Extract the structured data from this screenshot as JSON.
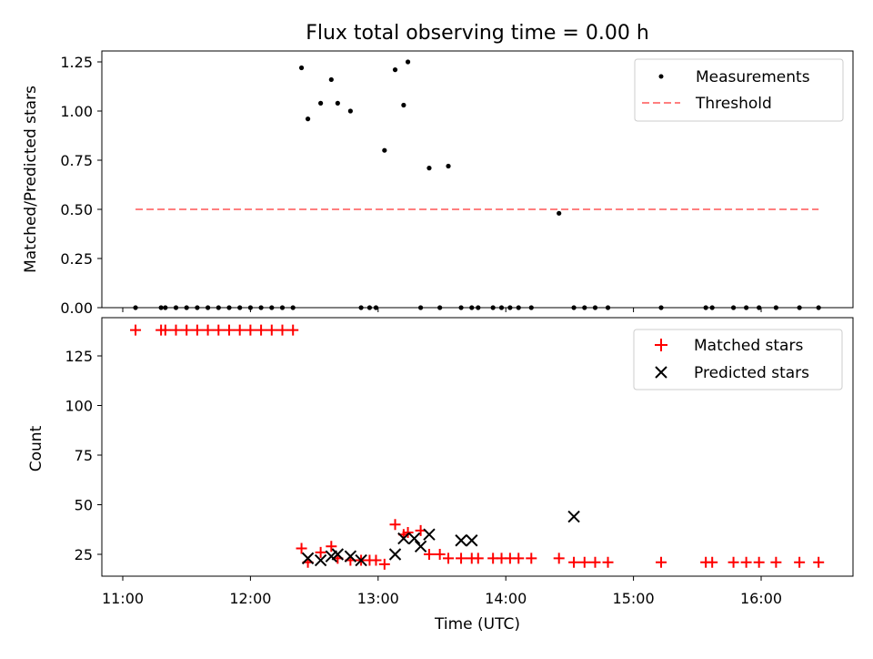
{
  "chart_data": {
    "title": "Flux total observing time = 0.00 h",
    "xlabel": "Time (UTC)",
    "x_ticks": [
      "11:00",
      "12:00",
      "13:00",
      "14:00",
      "15:00",
      "16:00"
    ],
    "colors": {
      "matched": "#ff0000",
      "predicted": "#000000",
      "threshold": "#ff7f7f",
      "measurements": "#000000"
    },
    "panels": [
      {
        "type": "scatter",
        "ylabel": "Matched/Predicted stars",
        "ylim": [
          0,
          1.3
        ],
        "y_ticks": [
          "0.00",
          "0.25",
          "0.50",
          "0.75",
          "1.00",
          "1.25"
        ],
        "legend_position": "top-right",
        "series": [
          {
            "name": "Measurements",
            "type": "scatter",
            "x": [
              "11:06",
              "11:18",
              "11:20",
              "11:25",
              "11:30",
              "11:35",
              "11:40",
              "11:45",
              "11:50",
              "11:55",
              "12:00",
              "12:05",
              "12:10",
              "12:15",
              "12:20",
              "12:24",
              "12:27",
              "12:33",
              "12:38",
              "12:41",
              "12:47",
              "12:52",
              "12:56",
              "12:59",
              "13:03",
              "13:08",
              "13:12",
              "13:14",
              "13:20",
              "13:24",
              "13:29",
              "13:33",
              "13:39",
              "13:44",
              "13:47",
              "13:54",
              "13:58",
              "14:02",
              "14:06",
              "14:12",
              "14:25",
              "14:32",
              "14:37",
              "14:42",
              "14:48",
              "15:13",
              "15:34",
              "15:37",
              "15:47",
              "15:53",
              "15:59",
              "16:07",
              "16:18",
              "16:27"
            ],
            "y": [
              0,
              0,
              0,
              0,
              0,
              0,
              0,
              0,
              0,
              0,
              0,
              0,
              0,
              0,
              0,
              1.22,
              0.96,
              1.04,
              1.16,
              1.04,
              1.0,
              0,
              0,
              0,
              0.8,
              1.21,
              1.03,
              1.25,
              0,
              0.71,
              0,
              0.72,
              0,
              0,
              0,
              0,
              0,
              0,
              0,
              0,
              0.48,
              0,
              0,
              0,
              0,
              0,
              0,
              0,
              0,
              0,
              0,
              0,
              0,
              0
            ]
          },
          {
            "name": "Threshold",
            "type": "line",
            "style": "dashed",
            "x": [
              "11:06",
              "16:27"
            ],
            "y": [
              0.5,
              0.5
            ]
          }
        ]
      },
      {
        "type": "scatter",
        "ylabel": "Count",
        "ylim": [
          15,
          145
        ],
        "y_ticks": [
          "25",
          "50",
          "75",
          "100",
          "125"
        ],
        "legend_position": "top-right",
        "series": [
          {
            "name": "Matched stars",
            "marker": "+",
            "x": [
              "11:06",
              "11:18",
              "11:20",
              "11:25",
              "11:30",
              "11:35",
              "11:40",
              "11:45",
              "11:50",
              "11:55",
              "12:00",
              "12:05",
              "12:10",
              "12:15",
              "12:20",
              "12:24",
              "12:27",
              "12:33",
              "12:38",
              "12:41",
              "12:47",
              "12:52",
              "12:56",
              "12:59",
              "13:03",
              "13:08",
              "13:12",
              "13:14",
              "13:20",
              "13:24",
              "13:29",
              "13:33",
              "13:39",
              "13:44",
              "13:47",
              "13:54",
              "13:58",
              "14:02",
              "14:06",
              "14:12",
              "14:25",
              "14:32",
              "14:37",
              "14:42",
              "14:48",
              "15:13",
              "15:34",
              "15:37",
              "15:47",
              "15:53",
              "15:59",
              "16:07",
              "16:18",
              "16:27"
            ],
            "y": [
              138,
              138,
              138,
              138,
              138,
              138,
              138,
              138,
              138,
              138,
              138,
              138,
              138,
              138,
              138,
              28,
              21,
              26,
              29,
              23,
              22,
              22,
              22,
              22,
              20,
              40,
              35,
              36,
              37,
              25,
              25,
              23,
              23,
              23,
              23,
              23,
              23,
              23,
              23,
              23,
              23,
              21,
              21,
              21,
              21,
              21,
              21,
              21,
              21,
              21,
              21,
              21,
              21,
              21
            ]
          },
          {
            "name": "Predicted stars",
            "marker": "x",
            "x": [
              "12:27",
              "12:33",
              "12:38",
              "12:41",
              "12:47",
              "12:52",
              "13:08",
              "13:12",
              "13:17",
              "13:20",
              "13:24",
              "13:39",
              "13:44",
              "14:32"
            ],
            "y": [
              23,
              22,
              24,
              25,
              24,
              22,
              25,
              33,
              33,
              29,
              35,
              32,
              32,
              44
            ]
          }
        ]
      }
    ]
  }
}
